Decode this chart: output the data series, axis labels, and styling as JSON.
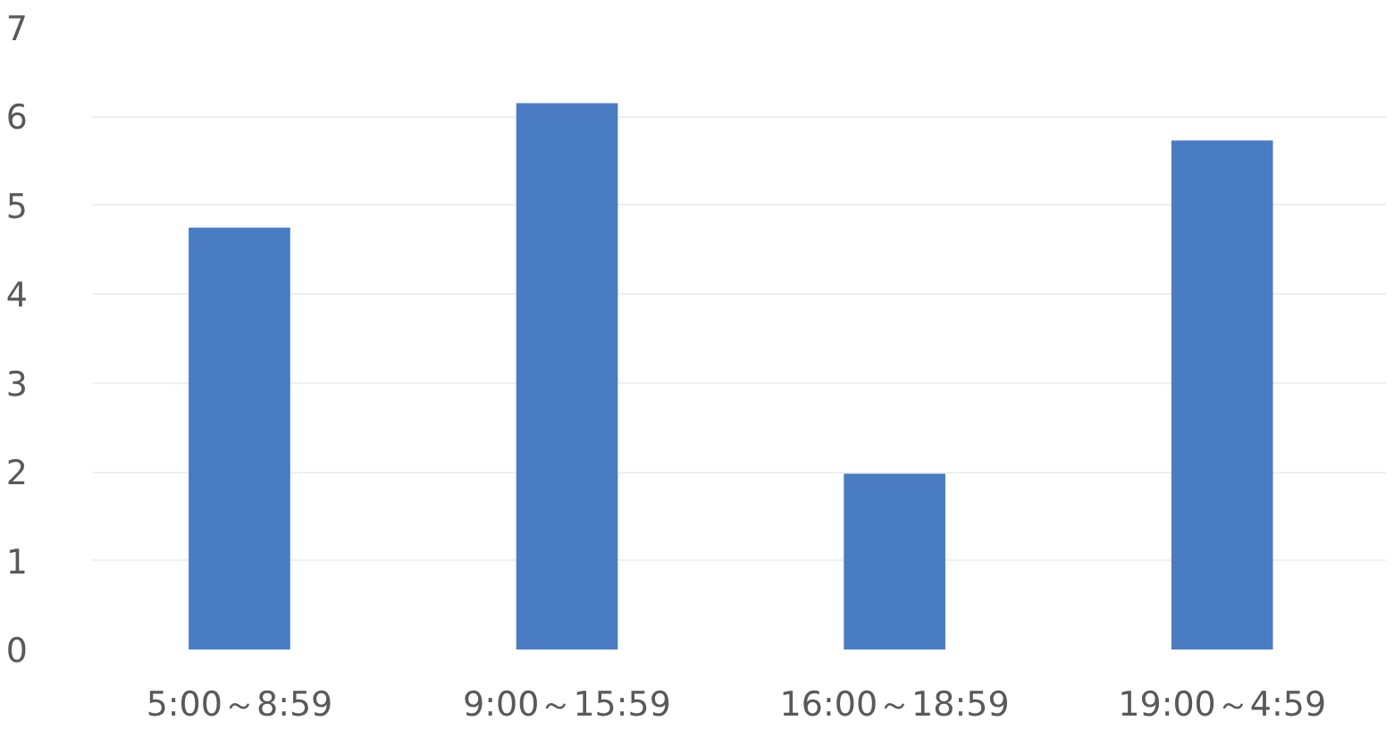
{
  "chart_data": {
    "type": "bar",
    "categories": [
      "5:00～8:59",
      "9:00～15:59",
      "16:00～18:59",
      "19:00～4:59"
    ],
    "values": [
      4.75,
      6.15,
      1.98,
      5.73
    ],
    "color": "#4a7cc4",
    "ylim": [
      0,
      7
    ],
    "yticks": [
      0,
      1,
      2,
      3,
      4,
      5,
      6,
      7
    ],
    "grid": "y"
  }
}
